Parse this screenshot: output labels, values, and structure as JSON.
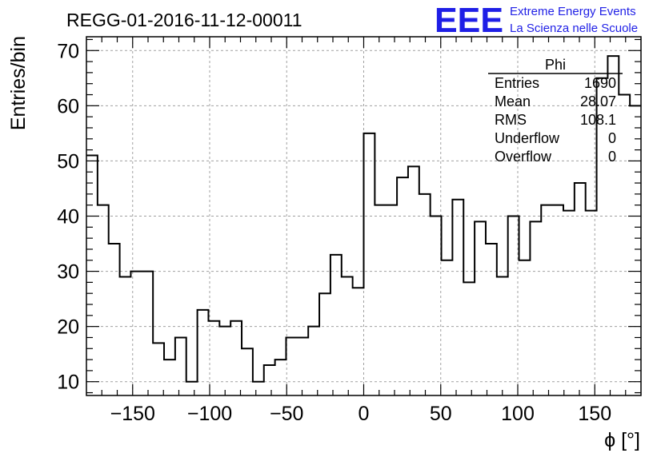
{
  "chart_data": {
    "type": "histogram",
    "title": "REGG-01-2016-11-12-00011",
    "xlabel": "ϕ [°]",
    "ylabel": "Entries/bin",
    "xlim": [
      -180,
      180
    ],
    "ylim": [
      7.5,
      72.5
    ],
    "bin_width": 7.2,
    "xticks": [
      -150,
      -100,
      -50,
      0,
      50,
      100,
      150
    ],
    "yticks": [
      10,
      20,
      30,
      40,
      50,
      60,
      70
    ],
    "grid": true,
    "values": [
      51,
      42,
      35,
      29,
      30,
      30,
      17,
      14,
      18,
      10,
      23,
      21,
      20,
      21,
      16,
      10,
      13,
      14,
      18,
      18,
      20,
      26,
      33,
      29,
      27,
      55,
      42,
      42,
      47,
      49,
      44,
      40,
      32,
      43,
      28,
      39,
      35,
      29,
      40,
      32,
      39,
      42,
      42,
      41,
      46,
      41,
      65,
      69,
      62,
      60
    ],
    "stats": {
      "name": "Phi",
      "rows": [
        {
          "label": "Entries",
          "value": "1690"
        },
        {
          "label": "Mean",
          "value": "28.07"
        },
        {
          "label": "RMS",
          "value": "108.1"
        },
        {
          "label": "Underflow",
          "value": "0"
        },
        {
          "label": "Overflow",
          "value": "0"
        }
      ]
    },
    "colors": {
      "line": "#000000",
      "grid": "#a0a0a0",
      "logo": "#1f1fe6"
    }
  },
  "logo": {
    "mark": "EEE",
    "line1": "Extreme Energy Events",
    "line2": "La Scienza nelle Scuole"
  }
}
